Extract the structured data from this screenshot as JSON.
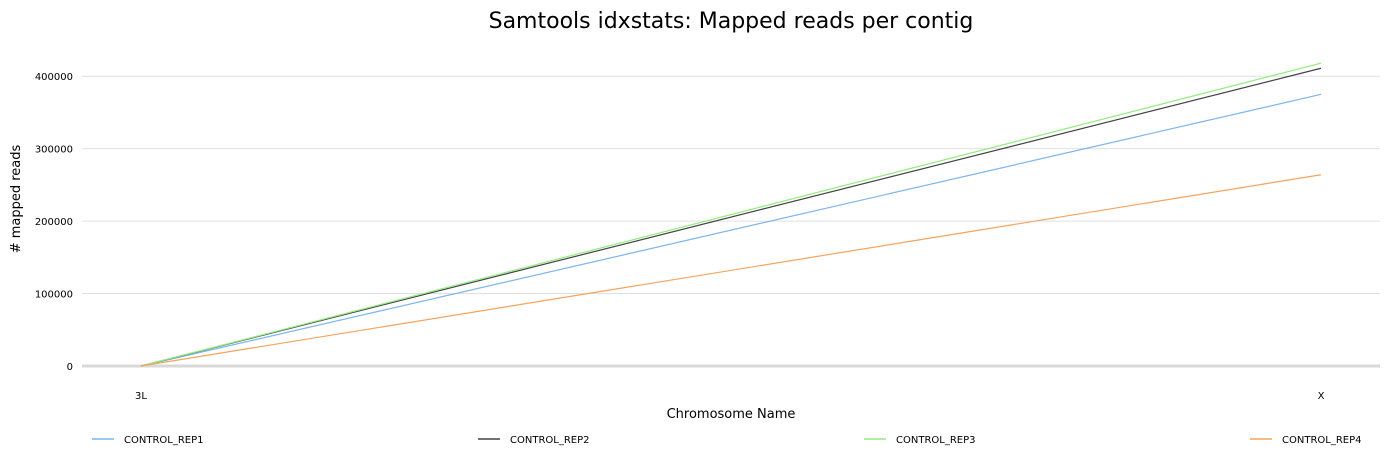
{
  "chart_data": {
    "type": "line",
    "title": "Samtools idxstats: Mapped reads per contig",
    "xlabel": "Chromosome Name",
    "ylabel": "# mapped reads",
    "categories": [
      "3L",
      "X"
    ],
    "ylim": [
      0,
      450000
    ],
    "yticks": [
      0,
      100000,
      200000,
      300000,
      400000
    ],
    "ytick_labels": [
      "0",
      "100000",
      "200000",
      "300000",
      "400000"
    ],
    "grid": true,
    "legend_position": "bottom",
    "series": [
      {
        "name": "CONTROL_REP1",
        "color": "#7cb5ec",
        "values": [
          0,
          375000
        ]
      },
      {
        "name": "CONTROL_REP2",
        "color": "#434348",
        "values": [
          0,
          411000
        ]
      },
      {
        "name": "CONTROL_REP3",
        "color": "#90ed7d",
        "values": [
          0,
          418000
        ]
      },
      {
        "name": "CONTROL_REP4",
        "color": "#f7a35c",
        "values": [
          0,
          264000
        ]
      }
    ]
  }
}
